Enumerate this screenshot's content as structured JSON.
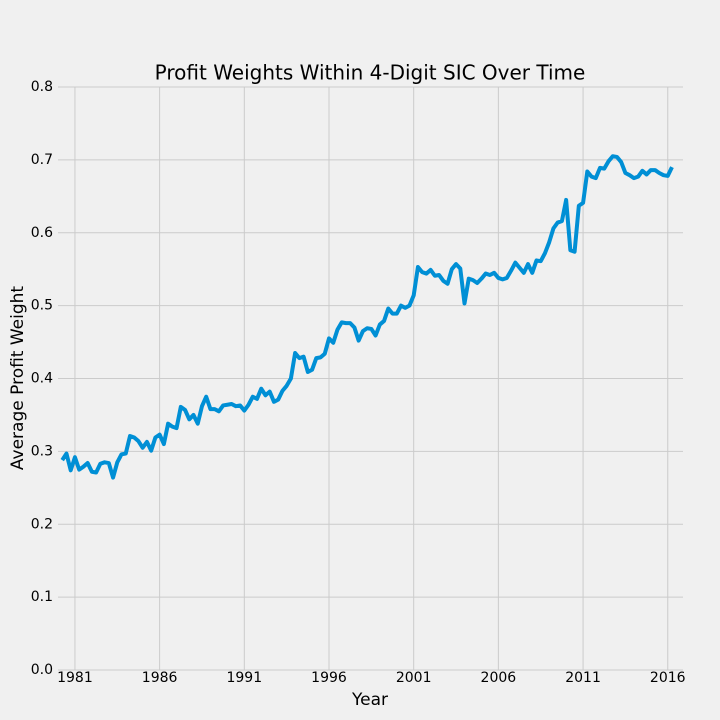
{
  "chart_data": {
    "type": "line",
    "title": "Profit Weights Within 4-Digit SIC Over Time",
    "x_label": "Year",
    "y_label": "Average Profit Weight",
    "xlim": [
      1980,
      2016.9
    ],
    "xticks": [
      1981,
      1986,
      1991,
      1996,
      2001,
      2006,
      2011,
      2016
    ],
    "ylim": [
      0,
      0.8
    ],
    "yticks": [
      {
        "value": 0,
        "label": "0.0"
      },
      0.1,
      0.2,
      0.3,
      0.4,
      0.5,
      0.6,
      0.7,
      0.8
    ],
    "grid": true,
    "x": [
      1980.25,
      1980.5,
      1980.75,
      1981,
      1981.25,
      1981.5,
      1981.75,
      1982,
      1982.25,
      1982.5,
      1982.75,
      1983,
      1983.25,
      1983.5,
      1983.75,
      1984,
      1984.25,
      1984.5,
      1984.75,
      1985,
      1985.25,
      1985.5,
      1985.75,
      1986,
      1986.25,
      1986.5,
      1986.75,
      1987,
      1987.25,
      1987.5,
      1987.75,
      1988,
      1988.25,
      1988.5,
      1988.75,
      1989,
      1989.25,
      1989.5,
      1989.75,
      1990,
      1990.25,
      1990.5,
      1990.75,
      1991,
      1991.25,
      1991.5,
      1991.75,
      1992,
      1992.25,
      1992.5,
      1992.75,
      1993,
      1993.25,
      1993.5,
      1993.75,
      1994,
      1994.25,
      1994.5,
      1994.75,
      1995,
      1995.25,
      1995.5,
      1995.75,
      1996,
      1996.25,
      1996.5,
      1996.75,
      1997,
      1997.25,
      1997.5,
      1997.75,
      1998,
      1998.25,
      1998.5,
      1998.75,
      1999,
      1999.25,
      1999.5,
      1999.75,
      2000,
      2000.25,
      2000.5,
      2000.75,
      2001,
      2001.25,
      2001.5,
      2001.75,
      2002,
      2002.25,
      2002.5,
      2002.75,
      2003,
      2003.25,
      2003.5,
      2003.75,
      2004,
      2004.25,
      2004.5,
      2004.75,
      2005,
      2005.25,
      2005.5,
      2005.75,
      2006,
      2006.25,
      2006.5,
      2006.75,
      2007,
      2007.25,
      2007.5,
      2007.75,
      2008,
      2008.25,
      2008.5,
      2008.75,
      2009,
      2009.25,
      2009.5,
      2009.75,
      2010,
      2010.25,
      2010.5,
      2010.75,
      2011,
      2011.25,
      2011.5,
      2011.75,
      2012,
      2012.25,
      2012.5,
      2012.75,
      2013,
      2013.25,
      2013.5,
      2013.75,
      2014,
      2014.25,
      2014.5,
      2014.75,
      2015,
      2015.25,
      2015.5,
      2015.75,
      2016,
      2016.25
    ],
    "series": [
      {
        "color": "#008fd5",
        "values": [
          0.288,
          0.297,
          0.274,
          0.292,
          0.275,
          0.279,
          0.284,
          0.272,
          0.271,
          0.283,
          0.285,
          0.284,
          0.264,
          0.285,
          0.296,
          0.297,
          0.321,
          0.319,
          0.314,
          0.305,
          0.313,
          0.301,
          0.319,
          0.323,
          0.31,
          0.338,
          0.334,
          0.332,
          0.361,
          0.357,
          0.344,
          0.35,
          0.338,
          0.362,
          0.375,
          0.358,
          0.358,
          0.355,
          0.363,
          0.364,
          0.365,
          0.362,
          0.363,
          0.356,
          0.364,
          0.375,
          0.372,
          0.386,
          0.377,
          0.382,
          0.368,
          0.371,
          0.383,
          0.39,
          0.4,
          0.435,
          0.428,
          0.43,
          0.409,
          0.412,
          0.428,
          0.429,
          0.434,
          0.455,
          0.449,
          0.467,
          0.477,
          0.476,
          0.476,
          0.47,
          0.452,
          0.465,
          0.469,
          0.468,
          0.459,
          0.474,
          0.479,
          0.496,
          0.489,
          0.489,
          0.5,
          0.497,
          0.5,
          0.514,
          0.553,
          0.546,
          0.544,
          0.549,
          0.541,
          0.542,
          0.534,
          0.53,
          0.55,
          0.557,
          0.551,
          0.503,
          0.537,
          0.535,
          0.531,
          0.537,
          0.544,
          0.542,
          0.545,
          0.538,
          0.536,
          0.538,
          0.548,
          0.559,
          0.552,
          0.545,
          0.557,
          0.545,
          0.562,
          0.561,
          0.572,
          0.587,
          0.606,
          0.614,
          0.616,
          0.645,
          0.576,
          0.574,
          0.637,
          0.641,
          0.684,
          0.677,
          0.675,
          0.689,
          0.688,
          0.698,
          0.705,
          0.704,
          0.697,
          0.682,
          0.679,
          0.675,
          0.677,
          0.685,
          0.68,
          0.686,
          0.686,
          0.682,
          0.679,
          0.678,
          0.69
        ]
      }
    ]
  }
}
